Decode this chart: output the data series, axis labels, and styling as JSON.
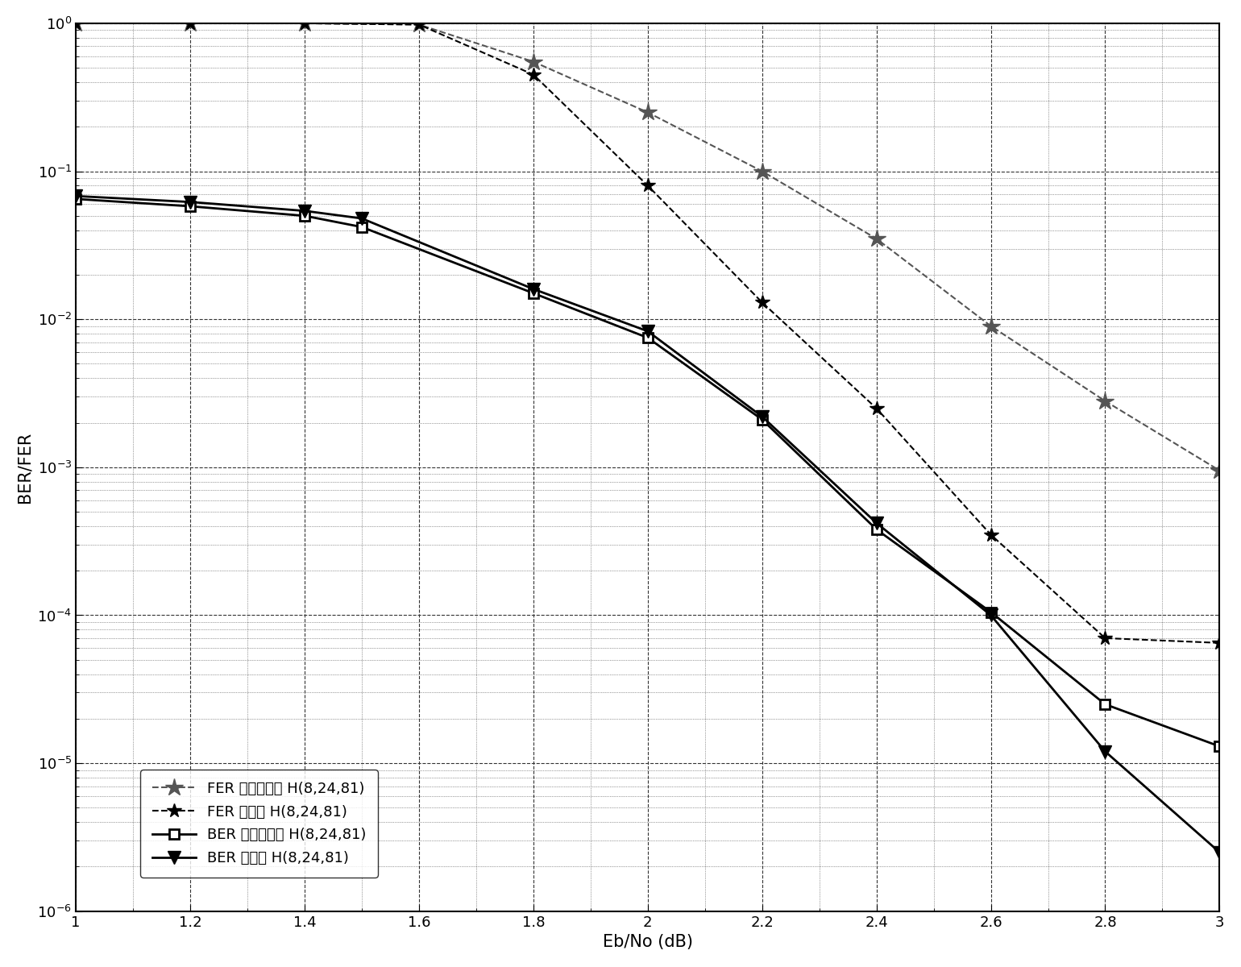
{
  "xlabel": "Eb/No (dB)",
  "ylabel": "BER/FER",
  "xlim": [
    1.0,
    3.0
  ],
  "ylim_log": [
    -6,
    0
  ],
  "xticks": [
    1.0,
    1.2,
    1.4,
    1.6,
    1.8,
    2.0,
    2.2,
    2.4,
    2.6,
    2.8,
    3.0
  ],
  "FER_quasi_diag_x": [
    1.0,
    1.2,
    1.4,
    1.6,
    1.8,
    2.0,
    2.2,
    2.4,
    2.6,
    2.8,
    3.0
  ],
  "FER_quasi_diag_y": [
    1.0,
    1.0,
    1.0,
    0.98,
    0.55,
    0.25,
    0.1,
    0.035,
    0.009,
    0.0028,
    0.00095
  ],
  "FER_new_x": [
    1.0,
    1.2,
    1.4,
    1.6,
    1.8,
    2.0,
    2.2,
    2.4,
    2.6,
    2.8,
    3.0
  ],
  "FER_new_y": [
    1.0,
    1.0,
    1.0,
    0.98,
    0.45,
    0.08,
    0.013,
    0.0025,
    0.00035,
    7e-05,
    6.5e-05
  ],
  "BER_quasi_diag_x": [
    1.0,
    1.2,
    1.4,
    1.5,
    1.8,
    2.0,
    2.2,
    2.4,
    2.6,
    2.8,
    3.0
  ],
  "BER_quasi_diag_y": [
    0.065,
    0.058,
    0.05,
    0.042,
    0.015,
    0.0075,
    0.0021,
    0.00038,
    0.000105,
    2.5e-05,
    1.3e-05
  ],
  "BER_new_x": [
    1.0,
    1.2,
    1.4,
    1.5,
    1.8,
    2.0,
    2.2,
    2.4,
    2.6,
    2.8,
    3.0
  ],
  "BER_new_y": [
    0.068,
    0.062,
    0.054,
    0.048,
    0.016,
    0.0083,
    0.0022,
    0.00042,
    0.0001,
    1.2e-05,
    2.5e-06
  ],
  "legend_labels": [
    "FER 近似双对角 H(8,24,81)",
    "FER 新发明 H(8,24,81)",
    "BER 近似双对角 H(8,24,81)",
    "BER 新发明 H(8,24,81)"
  ],
  "background_color": "#ffffff"
}
